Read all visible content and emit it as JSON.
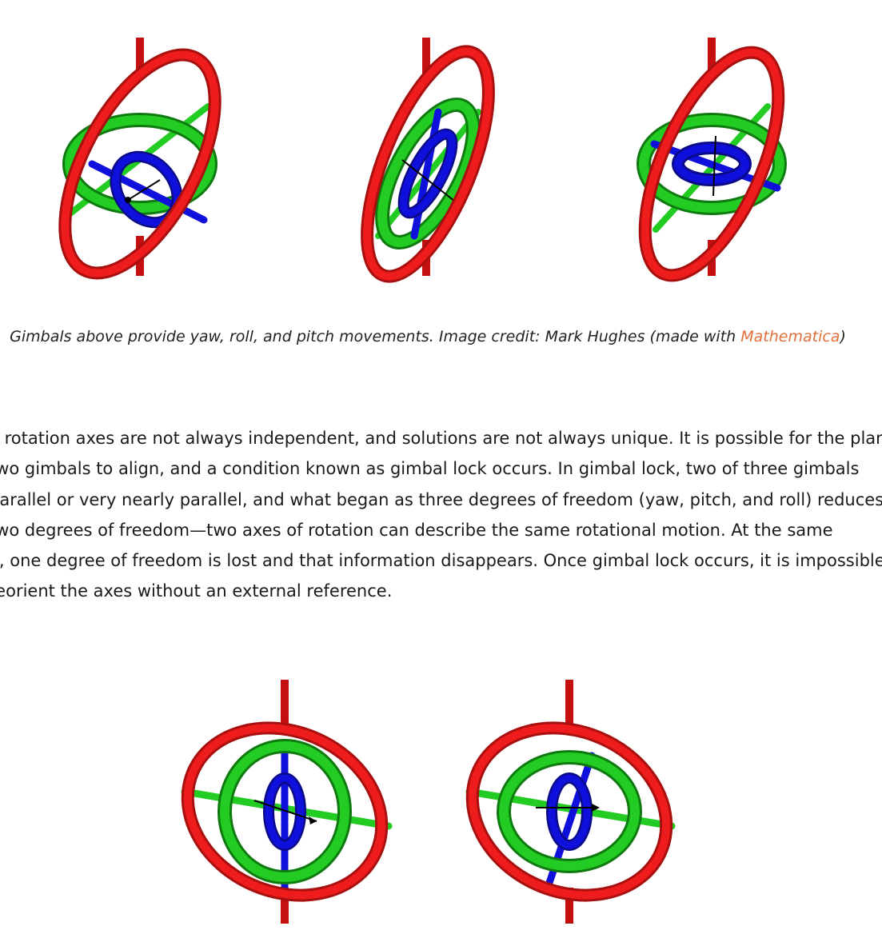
{
  "figure_top": {
    "image_description_name": "three-gimbals-yaw-roll-pitch",
    "colors": {
      "outer_ring": "#ee1c1c",
      "outer_ring_dark": "#a80f0f",
      "middle_ring": "#22cc22",
      "middle_ring_dark": "#0f7a0f",
      "inner_ring": "#1010dd",
      "inner_ring_dark": "#0a0a88",
      "axis": "#c41010"
    }
  },
  "caption": {
    "text": "Gimbals above provide yaw, roll, and pitch movements. Image credit: Mark Hughes (made with ",
    "link_text": "Mathematica",
    "close": ")"
  },
  "body": {
    "lines": [
      "e rotation axes are not always independent, and solutions are not always unique. It is possible for the plane",
      "two gimbals to align, and a condition known as gimbal lock occurs. In gimbal lock, two of three gimbals",
      "parallel or very nearly parallel, and what began as three degrees of freedom (yaw, pitch, and roll) reduces",
      "two degrees of freedom—two axes of rotation can describe the same rotational motion. At the same",
      "e, one degree of freedom is lost and that information disappears. Once gimbal lock occurs, it is impossible",
      "reorient the axes without an external reference."
    ]
  },
  "figure_bottom": {
    "image_description_name": "two-gimbals-in-gimbal-lock"
  }
}
